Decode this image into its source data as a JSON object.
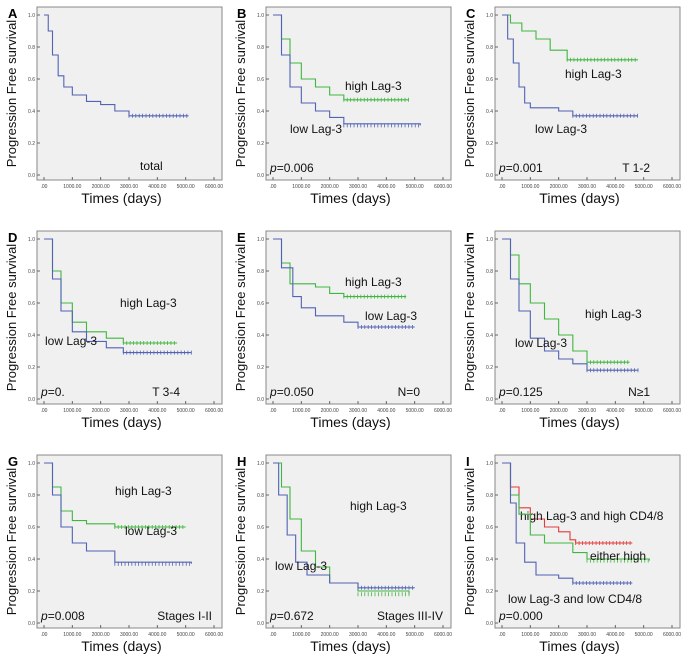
{
  "colors": {
    "low": "#5262b4",
    "high": "#3fb63f",
    "both_high": "#e23c3c",
    "plot_bg": "#f0f0f0"
  },
  "chart_data": [
    {
      "type": "line",
      "letter": "A",
      "ylabel": "Progression Free survival",
      "xlabel": "Times (days)",
      "xlim": [
        0,
        6000
      ],
      "ylim": [
        0,
        1
      ],
      "xticks": [
        ".00",
        "1000.00",
        "2000.00",
        "3000.00",
        "4000.00",
        "5000.00",
        "6000.00"
      ],
      "yticks": [
        "0.0",
        "0.2",
        "0.4",
        "0.6",
        "0.8",
        "1.0"
      ],
      "p_value": "",
      "subgroup": "total",
      "series": [
        {
          "name": "",
          "color_key": "low",
          "points": [
            [
              0,
              1
            ],
            [
              150,
              0.9
            ],
            [
              300,
              0.75
            ],
            [
              500,
              0.62
            ],
            [
              700,
              0.55
            ],
            [
              1000,
              0.5
            ],
            [
              1500,
              0.46
            ],
            [
              2000,
              0.44
            ],
            [
              2500,
              0.4
            ],
            [
              3000,
              0.37
            ],
            [
              5100,
              0.37
            ]
          ]
        }
      ]
    },
    {
      "type": "line",
      "letter": "B",
      "ylabel": "Progression Free survival",
      "xlabel": "Times (days)",
      "xlim": [
        0,
        6000
      ],
      "ylim": [
        0,
        1
      ],
      "xticks": [
        ".00",
        "1000.00",
        "2000.00",
        "3000.00",
        "4000.00",
        "5000.00",
        "6000.00"
      ],
      "yticks": [
        "0.0",
        "0.2",
        "0.4",
        "0.6",
        "0.8",
        "1.0"
      ],
      "p_value": "=0.006",
      "subgroup": "",
      "series": [
        {
          "name": "high Lag-3",
          "color_key": "high",
          "points": [
            [
              0,
              1
            ],
            [
              300,
              0.85
            ],
            [
              600,
              0.7
            ],
            [
              1000,
              0.6
            ],
            [
              1500,
              0.55
            ],
            [
              2000,
              0.5
            ],
            [
              2500,
              0.47
            ],
            [
              4800,
              0.47
            ]
          ]
        },
        {
          "name": "low Lag-3",
          "color_key": "low",
          "points": [
            [
              0,
              1
            ],
            [
              300,
              0.75
            ],
            [
              600,
              0.55
            ],
            [
              1000,
              0.45
            ],
            [
              1500,
              0.4
            ],
            [
              2000,
              0.36
            ],
            [
              2500,
              0.32
            ],
            [
              5200,
              0.31
            ]
          ]
        }
      ]
    },
    {
      "type": "line",
      "letter": "C",
      "ylabel": "Progression Free survival",
      "xlabel": "Times (days)",
      "xlim": [
        0,
        6000
      ],
      "ylim": [
        0,
        1
      ],
      "xticks": [
        ".00",
        "1000.00",
        "2000.00",
        "3000.00",
        "4000.00",
        "5000.00",
        "6000.00"
      ],
      "yticks": [
        "0.0",
        "0.2",
        "0.4",
        "0.6",
        "0.8",
        "1.0"
      ],
      "p_value": "=0.001",
      "subgroup": "T 1-2",
      "series": [
        {
          "name": "high Lag-3",
          "color_key": "high",
          "points": [
            [
              0,
              1
            ],
            [
              300,
              0.95
            ],
            [
              700,
              0.9
            ],
            [
              1200,
              0.85
            ],
            [
              1700,
              0.78
            ],
            [
              2300,
              0.72
            ],
            [
              4800,
              0.72
            ]
          ]
        },
        {
          "name": "low Lag-3",
          "color_key": "low",
          "points": [
            [
              0,
              1
            ],
            [
              200,
              0.85
            ],
            [
              400,
              0.7
            ],
            [
              600,
              0.55
            ],
            [
              800,
              0.45
            ],
            [
              1000,
              0.42
            ],
            [
              2000,
              0.4
            ],
            [
              2500,
              0.37
            ],
            [
              4800,
              0.37
            ]
          ]
        }
      ]
    },
    {
      "type": "line",
      "letter": "D",
      "ylabel": "Progression Free survival",
      "xlabel": "Times (days)",
      "xlim": [
        0,
        6000
      ],
      "ylim": [
        0,
        1
      ],
      "xticks": [
        ".00",
        "1000.00",
        "2000.00",
        "3000.00",
        "4000.00",
        "5000.00",
        "6000.00"
      ],
      "yticks": [
        "0.0",
        "0.2",
        "0.4",
        "0.6",
        "0.8",
        "1.0"
      ],
      "p_value": "=0.",
      "subgroup": "T 3-4",
      "series": [
        {
          "name": "high Lag-3",
          "color_key": "high",
          "points": [
            [
              0,
              1
            ],
            [
              300,
              0.8
            ],
            [
              600,
              0.6
            ],
            [
              1000,
              0.48
            ],
            [
              1500,
              0.42
            ],
            [
              2200,
              0.38
            ],
            [
              2800,
              0.35
            ],
            [
              4700,
              0.35
            ]
          ]
        },
        {
          "name": "low Lag-3",
          "color_key": "low",
          "points": [
            [
              0,
              1
            ],
            [
              300,
              0.75
            ],
            [
              600,
              0.55
            ],
            [
              1000,
              0.42
            ],
            [
              1500,
              0.36
            ],
            [
              2200,
              0.32
            ],
            [
              2800,
              0.29
            ],
            [
              5200,
              0.29
            ]
          ]
        }
      ]
    },
    {
      "type": "line",
      "letter": "E",
      "ylabel": "Progression Free survival",
      "xlabel": "Times (days)",
      "xlim": [
        0,
        6000
      ],
      "ylim": [
        0,
        1
      ],
      "xticks": [
        ".00",
        "1000.00",
        "2000.00",
        "3000.00",
        "4000.00",
        "5000.00",
        "6000.00"
      ],
      "yticks": [
        "0.0",
        "0.2",
        "0.4",
        "0.6",
        "0.8",
        "1.0"
      ],
      "p_value": "=0.050",
      "subgroup": "N=0",
      "series": [
        {
          "name": "high Lag-3",
          "color_key": "high",
          "points": [
            [
              0,
              1
            ],
            [
              300,
              0.85
            ],
            [
              600,
              0.72
            ],
            [
              1500,
              0.7
            ],
            [
              2000,
              0.66
            ],
            [
              2500,
              0.64
            ],
            [
              4700,
              0.64
            ]
          ]
        },
        {
          "name": "low Lag-3",
          "color_key": "low",
          "points": [
            [
              0,
              1
            ],
            [
              300,
              0.82
            ],
            [
              700,
              0.64
            ],
            [
              1000,
              0.57
            ],
            [
              1500,
              0.52
            ],
            [
              2500,
              0.48
            ],
            [
              3000,
              0.45
            ],
            [
              5000,
              0.45
            ]
          ]
        }
      ]
    },
    {
      "type": "line",
      "letter": "F",
      "ylabel": "Progression Free survival",
      "xlabel": "Times (days)",
      "xlim": [
        0,
        6000
      ],
      "ylim": [
        0,
        1
      ],
      "xticks": [
        ".00",
        "1000.00",
        "2000.00",
        "3000.00",
        "4000.00",
        "5000.00",
        "6000.00"
      ],
      "yticks": [
        "0.0",
        "0.2",
        "0.4",
        "0.6",
        "0.8",
        "1.0"
      ],
      "p_value": "=0.125",
      "subgroup": "N≥1",
      "series": [
        {
          "name": "high Lag-3",
          "color_key": "high",
          "points": [
            [
              0,
              1
            ],
            [
              300,
              0.9
            ],
            [
              600,
              0.72
            ],
            [
              1000,
              0.6
            ],
            [
              1500,
              0.5
            ],
            [
              2000,
              0.4
            ],
            [
              2500,
              0.3
            ],
            [
              3000,
              0.23
            ],
            [
              4500,
              0.23
            ]
          ]
        },
        {
          "name": "low Lag-3",
          "color_key": "low",
          "points": [
            [
              0,
              1
            ],
            [
              300,
              0.75
            ],
            [
              600,
              0.55
            ],
            [
              1000,
              0.38
            ],
            [
              1500,
              0.3
            ],
            [
              2000,
              0.25
            ],
            [
              2500,
              0.22
            ],
            [
              3000,
              0.18
            ],
            [
              4800,
              0.18
            ]
          ]
        }
      ]
    },
    {
      "type": "line",
      "letter": "G",
      "ylabel": "Progression Free survival",
      "xlabel": "Times (days)",
      "xlim": [
        0,
        6000
      ],
      "ylim": [
        0,
        1
      ],
      "xticks": [
        ".00",
        "1000.00",
        "2000.00",
        "3000.00",
        "4000.00",
        "5000.00",
        "6000.00"
      ],
      "yticks": [
        "0.0",
        "0.2",
        "0.4",
        "0.6",
        "0.8",
        "1.0"
      ],
      "p_value": "=0.008",
      "subgroup": "Stages I-II",
      "series": [
        {
          "name": "high Lag-3",
          "color_key": "high",
          "points": [
            [
              0,
              1
            ],
            [
              300,
              0.85
            ],
            [
              600,
              0.7
            ],
            [
              1000,
              0.64
            ],
            [
              1500,
              0.62
            ],
            [
              2500,
              0.6
            ],
            [
              5000,
              0.6
            ]
          ]
        },
        {
          "name": "low Lag-3",
          "color_key": "low",
          "points": [
            [
              0,
              1
            ],
            [
              300,
              0.8
            ],
            [
              600,
              0.6
            ],
            [
              1000,
              0.5
            ],
            [
              1500,
              0.45
            ],
            [
              2500,
              0.38
            ],
            [
              5200,
              0.37
            ]
          ]
        }
      ]
    },
    {
      "type": "line",
      "letter": "H",
      "ylabel": "Progression Free survival",
      "xlabel": "Times (days)",
      "xlim": [
        0,
        6000
      ],
      "ylim": [
        0,
        1
      ],
      "xticks": [
        ".00",
        "1000.00",
        "2000.00",
        "3000.00",
        "4000.00",
        "5000.00",
        "6000.00"
      ],
      "yticks": [
        "0.0",
        "0.2",
        "0.4",
        "0.6",
        "0.8",
        "1.0"
      ],
      "p_value": "=0.672",
      "subgroup": "Stages III-IV",
      "series": [
        {
          "name": "high Lag-3",
          "color_key": "high",
          "points": [
            [
              0,
              1
            ],
            [
              300,
              0.85
            ],
            [
              600,
              0.65
            ],
            [
              1000,
              0.45
            ],
            [
              1500,
              0.35
            ],
            [
              2000,
              0.25
            ],
            [
              3000,
              0.2
            ],
            [
              4800,
              0.18
            ]
          ]
        },
        {
          "name": "low Lag-3",
          "color_key": "low",
          "points": [
            [
              0,
              1
            ],
            [
              200,
              0.8
            ],
            [
              500,
              0.55
            ],
            [
              800,
              0.38
            ],
            [
              1200,
              0.3
            ],
            [
              2000,
              0.25
            ],
            [
              3000,
              0.22
            ],
            [
              5000,
              0.22
            ]
          ]
        }
      ]
    },
    {
      "type": "line",
      "letter": "I",
      "ylabel": "Progression Free survival",
      "xlabel": "Times (days)",
      "xlim": [
        0,
        6000
      ],
      "ylim": [
        0,
        1
      ],
      "xticks": [
        ".00",
        "1000.00",
        "2000.00",
        "3000.00",
        "4000.00",
        "5000.00",
        "6000.00"
      ],
      "yticks": [
        "0.0",
        "0.2",
        "0.4",
        "0.6",
        "0.8",
        "1.0"
      ],
      "p_value": "=0.000",
      "subgroup": "",
      "series": [
        {
          "name": "high Lag-3 and high CD4/8",
          "color_key": "both_high",
          "points": [
            [
              0,
              1
            ],
            [
              300,
              0.85
            ],
            [
              600,
              0.72
            ],
            [
              1000,
              0.65
            ],
            [
              1500,
              0.6
            ],
            [
              2000,
              0.57
            ],
            [
              2400,
              0.52
            ],
            [
              2600,
              0.5
            ],
            [
              4600,
              0.5
            ]
          ]
        },
        {
          "name": "either high",
          "color_key": "high",
          "points": [
            [
              0,
              1
            ],
            [
              300,
              0.8
            ],
            [
              600,
              0.68
            ],
            [
              1000,
              0.55
            ],
            [
              1500,
              0.5
            ],
            [
              2500,
              0.44
            ],
            [
              3000,
              0.4
            ],
            [
              5200,
              0.39
            ]
          ]
        },
        {
          "name": "low Lag-3 and low CD4/8",
          "color_key": "low",
          "points": [
            [
              0,
              1
            ],
            [
              300,
              0.75
            ],
            [
              500,
              0.5
            ],
            [
              800,
              0.38
            ],
            [
              1200,
              0.3
            ],
            [
              2000,
              0.28
            ],
            [
              2500,
              0.25
            ],
            [
              4600,
              0.25
            ]
          ]
        }
      ]
    }
  ]
}
